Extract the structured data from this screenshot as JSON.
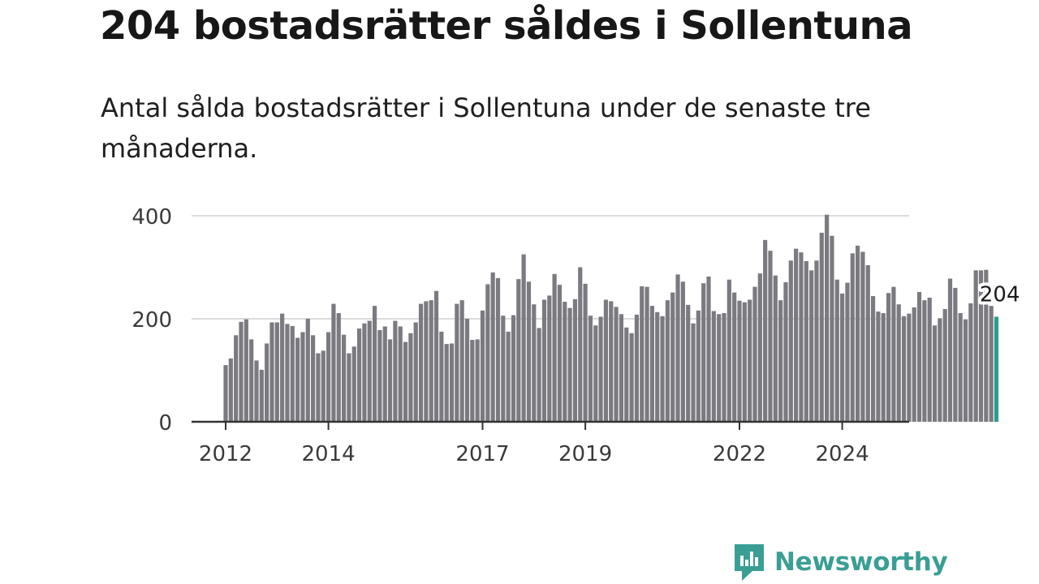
{
  "title": "204 bostadsrätter såldes i Sollentuna",
  "subtitle": "Antal sålda bostadsrätter i Sollentuna under de senaste tre månaderna.",
  "brand": {
    "name": "Newsworthy",
    "icon": "newsworthy-logo-icon",
    "color": "#3a9e94"
  },
  "colors": {
    "bar": "#7a7a80",
    "highlight": "#2a9d8f",
    "grid": "#dcdcdc",
    "axis": "#333333"
  },
  "chart_data": {
    "type": "bar",
    "title": "Antal sålda bostadsrätter i Sollentuna",
    "ylim": [
      0,
      400
    ],
    "y_ticks": [
      {
        "value": 0,
        "label": "0"
      },
      {
        "value": 200,
        "label": "200"
      },
      {
        "value": 400,
        "label": "400"
      }
    ],
    "x_ticks": [
      {
        "index": 0,
        "label": "2012"
      },
      {
        "index": 20,
        "label": "2014"
      },
      {
        "index": 50,
        "label": "2017"
      },
      {
        "index": 70,
        "label": "2019"
      },
      {
        "index": 100,
        "label": "2022"
      },
      {
        "index": 120,
        "label": "2024"
      }
    ],
    "values": [
      110,
      123,
      168,
      194,
      199,
      160,
      119,
      101,
      152,
      193,
      193,
      210,
      190,
      186,
      163,
      174,
      200,
      168,
      133,
      138,
      174,
      229,
      211,
      169,
      133,
      146,
      181,
      191,
      196,
      225,
      178,
      185,
      160,
      196,
      185,
      155,
      172,
      193,
      229,
      234,
      236,
      254,
      175,
      151,
      152,
      229,
      236,
      200,
      159,
      160,
      216,
      267,
      290,
      279,
      206,
      175,
      207,
      277,
      325,
      272,
      228,
      182,
      237,
      245,
      287,
      266,
      233,
      221,
      238,
      300,
      268,
      206,
      187,
      204,
      237,
      234,
      223,
      209,
      183,
      172,
      208,
      263,
      262,
      225,
      213,
      205,
      236,
      251,
      286,
      272,
      227,
      191,
      216,
      269,
      282,
      215,
      209,
      211,
      276,
      251,
      235,
      232,
      237,
      262,
      288,
      353,
      332,
      284,
      236,
      271,
      313,
      336,
      329,
      312,
      294,
      313,
      367,
      402,
      361,
      276,
      249,
      270,
      327,
      342,
      330,
      304,
      244,
      214,
      211,
      250,
      262,
      228,
      205,
      210,
      222,
      252,
      236,
      241,
      187,
      201,
      219,
      278,
      260,
      211,
      199,
      230,
      294,
      294,
      295,
      225,
      204
    ],
    "highlight_last": true,
    "end_label": "204"
  }
}
